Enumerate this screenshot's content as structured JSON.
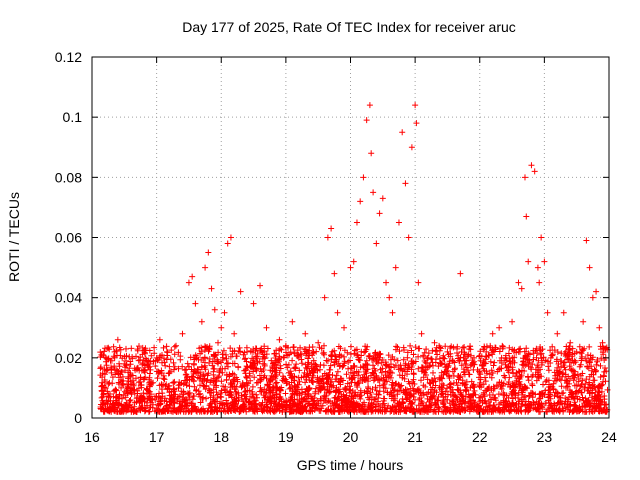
{
  "chart_data": {
    "type": "scatter",
    "title": "Day 177 of 2025, Rate Of TEC Index for receiver aruc",
    "xlabel": "GPS time / hours",
    "ylabel": "ROTI / TECUs",
    "xlim": [
      16,
      24
    ],
    "ylim": [
      0,
      0.12
    ],
    "xticks": [
      16,
      17,
      18,
      19,
      20,
      21,
      22,
      23,
      24
    ],
    "xtick_labels": [
      "16",
      "17",
      "18",
      "19",
      "20",
      "21",
      "22",
      "23",
      "24"
    ],
    "yticks": [
      0,
      0.02,
      0.04,
      0.06,
      0.08,
      0.1,
      0.12
    ],
    "ytick_labels": [
      "0",
      "0.02",
      "0.04",
      "0.06",
      "0.08",
      "0.1",
      "0.12"
    ],
    "grid": true,
    "marker": "+",
    "color": "#ff0000",
    "series": [
      {
        "name": "ROTI",
        "points": [
          [
            16.15,
            0.003
          ],
          [
            16.2,
            0.012
          ],
          [
            16.25,
            0.008
          ],
          [
            16.3,
            0.015
          ],
          [
            16.35,
            0.022
          ],
          [
            16.4,
            0.026
          ],
          [
            16.45,
            0.01
          ],
          [
            16.5,
            0.018
          ],
          [
            16.6,
            0.014
          ],
          [
            16.7,
            0.009
          ],
          [
            16.8,
            0.016
          ],
          [
            16.9,
            0.012
          ],
          [
            17.0,
            0.02
          ],
          [
            17.05,
            0.026
          ],
          [
            17.1,
            0.011
          ],
          [
            17.2,
            0.015
          ],
          [
            17.3,
            0.024
          ],
          [
            17.4,
            0.028
          ],
          [
            17.5,
            0.045
          ],
          [
            17.55,
            0.047
          ],
          [
            17.6,
            0.038
          ],
          [
            17.7,
            0.032
          ],
          [
            17.75,
            0.05
          ],
          [
            17.8,
            0.055
          ],
          [
            17.85,
            0.043
          ],
          [
            17.9,
            0.036
          ],
          [
            17.95,
            0.025
          ],
          [
            18.0,
            0.03
          ],
          [
            18.05,
            0.035
          ],
          [
            18.1,
            0.058
          ],
          [
            18.15,
            0.06
          ],
          [
            18.2,
            0.028
          ],
          [
            18.3,
            0.042
          ],
          [
            18.4,
            0.022
          ],
          [
            18.5,
            0.038
          ],
          [
            18.6,
            0.044
          ],
          [
            18.7,
            0.03
          ],
          [
            18.8,
            0.018
          ],
          [
            18.9,
            0.026
          ],
          [
            19.0,
            0.024
          ],
          [
            19.1,
            0.032
          ],
          [
            19.2,
            0.02
          ],
          [
            19.3,
            0.028
          ],
          [
            19.4,
            0.018
          ],
          [
            19.5,
            0.025
          ],
          [
            19.6,
            0.04
          ],
          [
            19.65,
            0.06
          ],
          [
            19.7,
            0.063
          ],
          [
            19.75,
            0.048
          ],
          [
            19.8,
            0.035
          ],
          [
            19.9,
            0.03
          ],
          [
            20.0,
            0.05
          ],
          [
            20.05,
            0.052
          ],
          [
            20.1,
            0.065
          ],
          [
            20.15,
            0.072
          ],
          [
            20.2,
            0.08
          ],
          [
            20.25,
            0.099
          ],
          [
            20.3,
            0.104
          ],
          [
            20.32,
            0.088
          ],
          [
            20.35,
            0.075
          ],
          [
            20.4,
            0.058
          ],
          [
            20.45,
            0.068
          ],
          [
            20.5,
            0.073
          ],
          [
            20.55,
            0.045
          ],
          [
            20.6,
            0.04
          ],
          [
            20.65,
            0.035
          ],
          [
            20.7,
            0.05
          ],
          [
            20.75,
            0.065
          ],
          [
            20.8,
            0.095
          ],
          [
            20.85,
            0.078
          ],
          [
            20.9,
            0.06
          ],
          [
            20.95,
            0.09
          ],
          [
            21.0,
            0.104
          ],
          [
            21.02,
            0.098
          ],
          [
            21.05,
            0.045
          ],
          [
            21.1,
            0.028
          ],
          [
            21.2,
            0.02
          ],
          [
            21.3,
            0.025
          ],
          [
            21.4,
            0.018
          ],
          [
            21.5,
            0.022
          ],
          [
            21.6,
            0.014
          ],
          [
            21.7,
            0.048
          ],
          [
            21.75,
            0.02
          ],
          [
            21.8,
            0.012
          ],
          [
            21.9,
            0.018
          ],
          [
            22.0,
            0.015
          ],
          [
            22.1,
            0.022
          ],
          [
            22.2,
            0.028
          ],
          [
            22.3,
            0.03
          ],
          [
            22.4,
            0.02
          ],
          [
            22.5,
            0.032
          ],
          [
            22.6,
            0.045
          ],
          [
            22.65,
            0.043
          ],
          [
            22.7,
            0.08
          ],
          [
            22.72,
            0.067
          ],
          [
            22.75,
            0.052
          ],
          [
            22.8,
            0.084
          ],
          [
            22.85,
            0.082
          ],
          [
            22.9,
            0.05
          ],
          [
            22.92,
            0.045
          ],
          [
            22.95,
            0.06
          ],
          [
            23.0,
            0.052
          ],
          [
            23.05,
            0.035
          ],
          [
            23.1,
            0.02
          ],
          [
            23.2,
            0.028
          ],
          [
            23.3,
            0.035
          ],
          [
            23.4,
            0.025
          ],
          [
            23.5,
            0.022
          ],
          [
            23.6,
            0.032
          ],
          [
            23.65,
            0.059
          ],
          [
            23.7,
            0.05
          ],
          [
            23.75,
            0.04
          ],
          [
            23.8,
            0.042
          ],
          [
            23.85,
            0.03
          ],
          [
            23.9,
            0.025
          ],
          [
            23.95,
            0.02
          ]
        ]
      }
    ]
  }
}
